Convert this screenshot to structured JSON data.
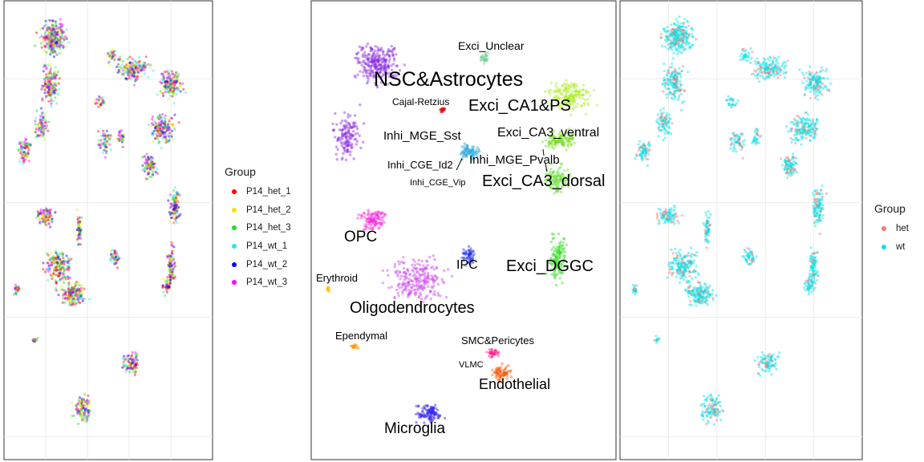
{
  "chart_data": [
    {
      "type": "scatter",
      "panel": "left",
      "title": "",
      "xlabel": "",
      "ylabel": "",
      "grid": true,
      "legend_position": "right",
      "legend": {
        "title": "Group",
        "entries": [
          {
            "label": "P14_het_1",
            "color": "#ff0000"
          },
          {
            "label": "P14_het_2",
            "color": "#f2e600"
          },
          {
            "label": "P14_het_3",
            "color": "#22dd22"
          },
          {
            "label": "P14_wt_1",
            "color": "#2ee6e6"
          },
          {
            "label": "P14_wt_2",
            "color": "#0000ff"
          },
          {
            "label": "P14_wt_3",
            "color": "#ff00ff"
          }
        ]
      }
    },
    {
      "type": "scatter",
      "panel": "middle",
      "title": "",
      "xlabel": "",
      "ylabel": "",
      "grid": false,
      "clusters": [
        {
          "label": "NSC&Astrocytes",
          "color": "#8a2be2"
        },
        {
          "label": "Exci_Unclear",
          "color": "#66cc88"
        },
        {
          "label": "Cajal-Retzius",
          "color": "#e60000"
        },
        {
          "label": "Exci_CA1&PS",
          "color": "#aaee22"
        },
        {
          "label": "Inhi_MGE_Sst",
          "color": "#33aadd"
        },
        {
          "label": "Exci_CA3_ventral",
          "color": "#77dd22"
        },
        {
          "label": "Inhi_MGE_Pvalb",
          "color": "#44bbee"
        },
        {
          "label": "Inhi_CGE_Id2",
          "color": "#3399dd"
        },
        {
          "label": "Inhi_CGE_Vip",
          "color": "#2288cc"
        },
        {
          "label": "Exci_CA3_dorsal",
          "color": "#66dd33"
        },
        {
          "label": "OPC",
          "color": "#ff22dd"
        },
        {
          "label": "IPC",
          "color": "#2233ee"
        },
        {
          "label": "Exci_DGGC",
          "color": "#33dd22"
        },
        {
          "label": "Erythroid",
          "color": "#ffbb00"
        },
        {
          "label": "Oligodendrocytes",
          "color": "#cc44ee"
        },
        {
          "label": "Ependymal",
          "color": "#ff9900"
        },
        {
          "label": "SMC&Pericytes",
          "color": "#ff2288"
        },
        {
          "label": "VLMC",
          "color": "#ff3366"
        },
        {
          "label": "Endothelial",
          "color": "#ff5500"
        },
        {
          "label": "Microglia",
          "color": "#3322ee"
        }
      ]
    },
    {
      "type": "scatter",
      "panel": "right",
      "title": "",
      "xlabel": "",
      "ylabel": "",
      "grid": true,
      "legend_position": "right",
      "legend": {
        "title": "Group",
        "entries": [
          {
            "label": "het",
            "color": "#f8766d"
          },
          {
            "label": "wt",
            "color": "#00e5ee"
          }
        ]
      }
    }
  ]
}
